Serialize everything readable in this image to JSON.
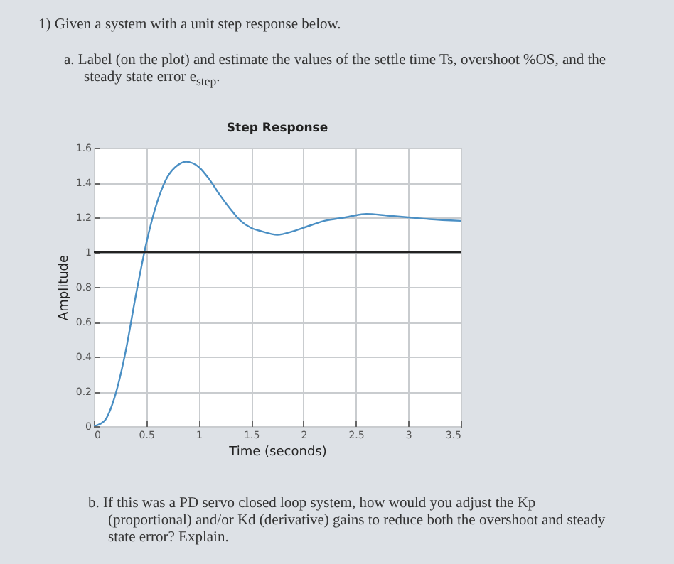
{
  "chart_data": {
    "type": "line",
    "title": "Step Response",
    "xlabel": "Time (seconds)",
    "ylabel": "Amplitude",
    "x": [
      0,
      0.1,
      0.2,
      0.3,
      0.4,
      0.5,
      0.6,
      0.7,
      0.8,
      0.88,
      1.0,
      1.1,
      1.2,
      1.3,
      1.4,
      1.5,
      1.6,
      1.75,
      1.9,
      2.0,
      2.2,
      2.4,
      2.6,
      2.8,
      3.0,
      3.2,
      3.5
    ],
    "series": [
      {
        "color": "#4a8fc4",
        "values": [
          0,
          0.03,
          0.17,
          0.42,
          0.75,
          1.05,
          1.28,
          1.43,
          1.5,
          1.52,
          1.49,
          1.42,
          1.33,
          1.25,
          1.18,
          1.14,
          1.12,
          1.1,
          1.12,
          1.14,
          1.18,
          1.2,
          1.22,
          1.21,
          1.2,
          1.19,
          1.18
        ]
      }
    ],
    "xlim": [
      0,
      3.5
    ],
    "xticks": [
      0,
      0.5,
      1,
      1.5,
      2,
      2.5,
      3,
      3.5
    ],
    "ylim": [
      0,
      1.6
    ],
    "yticks": [
      0,
      0.2,
      0.4,
      0.6,
      0.8,
      1,
      1.2,
      1.4,
      1.6
    ],
    "grid": true,
    "ref_lines": [
      {
        "axis": "y",
        "value": 1,
        "color": "#222222"
      }
    ],
    "annotations": [
      "1) Given a system with a unit step response below.",
      "a. Label (on the plot) and estimate the values of the settle time Ts, overshoot %OS, and the steady state error e$_{step}$.",
      "b. If this was a PD servo closed loop system, how would you adjust the Kp (proportional) and/or Kd (derivative) gains to reduce both the overshoot and steady state error? Explain."
    ]
  }
}
